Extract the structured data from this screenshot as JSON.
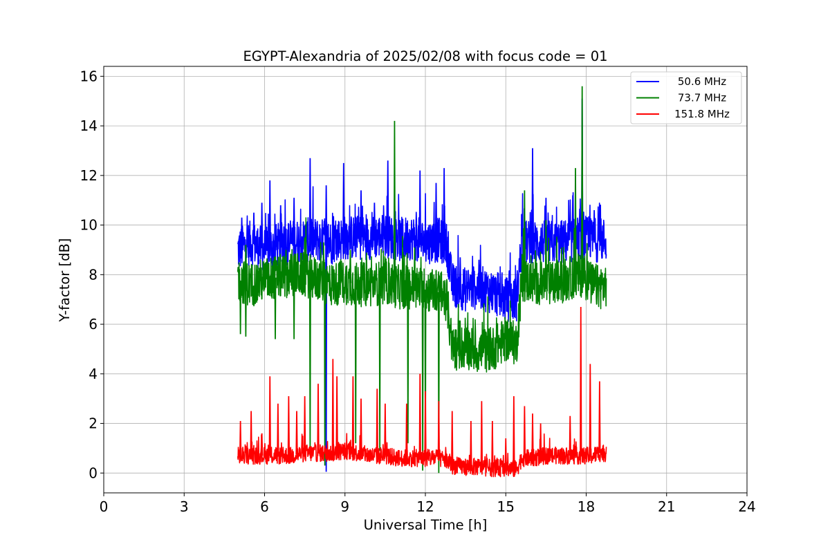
{
  "chart_data": {
    "type": "line",
    "title": "EGYPT-Alexandria of 2025/02/08 with focus code = 01",
    "xlabel": "Universal Time [h]",
    "ylabel": "Y-factor [dB]",
    "xlim": [
      0,
      24
    ],
    "ylim": [
      -0.8,
      16.4
    ],
    "xticks": [
      0,
      3,
      6,
      9,
      12,
      15,
      18,
      21,
      24
    ],
    "yticks": [
      0,
      2,
      4,
      6,
      8,
      10,
      12,
      14,
      16
    ],
    "grid": true,
    "legend_position": "top-right",
    "series": [
      {
        "name": " 50.6 MHz",
        "color": "#0000ff",
        "x": [
          5.0,
          5.5,
          6.0,
          6.5,
          7.0,
          7.5,
          8.0,
          8.5,
          9.0,
          9.5,
          10.0,
          10.5,
          11.0,
          11.5,
          12.0,
          12.5,
          12.8,
          13.0,
          13.5,
          14.0,
          14.5,
          15.0,
          15.4,
          15.6,
          16.0,
          16.5,
          17.0,
          17.5,
          17.9,
          18.2,
          18.5,
          18.75
        ],
        "y": [
          9.0,
          9.3,
          9.0,
          9.2,
          9.3,
          9.4,
          9.4,
          9.3,
          9.5,
          9.5,
          9.5,
          9.6,
          9.4,
          9.5,
          9.3,
          9.4,
          9.2,
          7.6,
          7.4,
          7.5,
          7.3,
          7.0,
          7.0,
          9.3,
          9.3,
          9.3,
          9.3,
          9.4,
          9.5,
          9.4,
          9.4,
          9.4
        ],
        "spikes": [
          {
            "x": 5.15,
            "y": 10.3
          },
          {
            "x": 5.6,
            "y": 10.5
          },
          {
            "x": 5.9,
            "y": 10.9
          },
          {
            "x": 6.2,
            "y": 11.8
          },
          {
            "x": 6.6,
            "y": 10.8
          },
          {
            "x": 7.1,
            "y": 11.1
          },
          {
            "x": 7.7,
            "y": 12.7
          },
          {
            "x": 8.3,
            "y": 11.6
          },
          {
            "x": 8.95,
            "y": 12.5
          },
          {
            "x": 9.6,
            "y": 11.4
          },
          {
            "x": 10.1,
            "y": 10.9
          },
          {
            "x": 10.6,
            "y": 12.6
          },
          {
            "x": 10.85,
            "y": 11.2
          },
          {
            "x": 11.8,
            "y": 12.2
          },
          {
            "x": 12.4,
            "y": 11.7
          },
          {
            "x": 12.7,
            "y": 12.3
          },
          {
            "x": 13.3,
            "y": 8.7
          },
          {
            "x": 14.0,
            "y": 8.6
          },
          {
            "x": 14.7,
            "y": 8.1
          },
          {
            "x": 16.0,
            "y": 13.1
          },
          {
            "x": 16.5,
            "y": 11.1
          },
          {
            "x": 17.5,
            "y": 11.2
          },
          {
            "x": 17.85,
            "y": 15.1
          },
          {
            "x": 18.3,
            "y": 10.6
          }
        ],
        "dips": [
          {
            "x": 8.3,
            "y": 0.05
          }
        ]
      },
      {
        "name": " 73.7 MHz",
        "color": "#008000",
        "x": [
          5.0,
          5.5,
          6.0,
          6.5,
          7.0,
          7.5,
          8.0,
          8.5,
          9.0,
          9.5,
          10.0,
          10.5,
          11.0,
          11.5,
          12.0,
          12.5,
          12.8,
          13.0,
          13.5,
          14.0,
          14.5,
          15.0,
          15.4,
          15.6,
          16.0,
          16.5,
          17.0,
          17.5,
          17.9,
          18.2,
          18.5,
          18.75
        ],
        "y": [
          7.8,
          7.6,
          7.8,
          7.9,
          8.0,
          8.0,
          7.8,
          7.6,
          7.7,
          7.6,
          7.6,
          7.7,
          7.5,
          7.5,
          7.4,
          7.3,
          7.0,
          5.0,
          5.1,
          4.9,
          5.0,
          5.4,
          5.2,
          7.8,
          7.7,
          7.6,
          7.7,
          7.9,
          8.0,
          7.6,
          7.5,
          7.6
        ],
        "spikes": [
          {
            "x": 5.3,
            "y": 9.2
          },
          {
            "x": 6.8,
            "y": 9.0
          },
          {
            "x": 7.5,
            "y": 9.5
          },
          {
            "x": 8.2,
            "y": 9.3
          },
          {
            "x": 9.2,
            "y": 9.0
          },
          {
            "x": 10.85,
            "y": 14.2
          },
          {
            "x": 11.6,
            "y": 9.1
          },
          {
            "x": 15.7,
            "y": 11.4
          },
          {
            "x": 16.5,
            "y": 10.2
          },
          {
            "x": 17.6,
            "y": 12.3
          },
          {
            "x": 17.85,
            "y": 15.6
          }
        ],
        "dips": [
          {
            "x": 5.1,
            "y": 5.6
          },
          {
            "x": 5.3,
            "y": 5.5
          },
          {
            "x": 6.4,
            "y": 5.4
          },
          {
            "x": 7.1,
            "y": 5.4
          },
          {
            "x": 7.7,
            "y": 0.7
          },
          {
            "x": 8.25,
            "y": 0.3
          },
          {
            "x": 9.4,
            "y": 1.2
          },
          {
            "x": 10.3,
            "y": 0.9
          },
          {
            "x": 11.35,
            "y": 1.2
          },
          {
            "x": 11.9,
            "y": 0.1
          },
          {
            "x": 12.0,
            "y": 0.5
          },
          {
            "x": 12.5,
            "y": 0.0
          }
        ]
      },
      {
        "name": "151.8 MHz",
        "color": "#ff0000",
        "x": [
          5.0,
          5.5,
          6.0,
          6.5,
          7.0,
          7.5,
          8.0,
          8.5,
          9.0,
          9.5,
          10.0,
          10.5,
          11.0,
          11.5,
          12.0,
          12.5,
          12.8,
          13.0,
          13.5,
          14.0,
          14.5,
          15.0,
          15.4,
          15.6,
          16.0,
          16.5,
          17.0,
          17.5,
          17.9,
          18.2,
          18.5,
          18.75
        ],
        "y": [
          0.7,
          0.7,
          0.7,
          0.7,
          0.7,
          0.8,
          0.8,
          0.8,
          0.9,
          0.8,
          0.7,
          0.7,
          0.6,
          0.6,
          0.6,
          0.6,
          0.5,
          0.3,
          0.25,
          0.25,
          0.2,
          0.2,
          0.15,
          0.6,
          0.6,
          0.7,
          0.7,
          0.7,
          0.7,
          0.7,
          0.8,
          0.8
        ],
        "spikes": [
          {
            "x": 5.1,
            "y": 2.1
          },
          {
            "x": 5.5,
            "y": 2.5
          },
          {
            "x": 5.9,
            "y": 1.6
          },
          {
            "x": 6.2,
            "y": 3.9
          },
          {
            "x": 6.5,
            "y": 2.8
          },
          {
            "x": 6.9,
            "y": 3.1
          },
          {
            "x": 7.2,
            "y": 2.5
          },
          {
            "x": 7.5,
            "y": 3.1
          },
          {
            "x": 8.0,
            "y": 3.6
          },
          {
            "x": 8.55,
            "y": 4.6
          },
          {
            "x": 8.7,
            "y": 3.9
          },
          {
            "x": 9.3,
            "y": 3.9
          },
          {
            "x": 9.6,
            "y": 3.0
          },
          {
            "x": 10.2,
            "y": 3.4
          },
          {
            "x": 10.5,
            "y": 2.8
          },
          {
            "x": 11.3,
            "y": 2.8
          },
          {
            "x": 11.8,
            "y": 4.0
          },
          {
            "x": 12.0,
            "y": 3.3
          },
          {
            "x": 12.5,
            "y": 2.9
          },
          {
            "x": 13.0,
            "y": 2.5
          },
          {
            "x": 13.7,
            "y": 2.1
          },
          {
            "x": 14.1,
            "y": 2.9
          },
          {
            "x": 14.5,
            "y": 2.1
          },
          {
            "x": 15.0,
            "y": 1.4
          },
          {
            "x": 15.3,
            "y": 3.1
          },
          {
            "x": 15.7,
            "y": 2.7
          },
          {
            "x": 16.0,
            "y": 2.4
          },
          {
            "x": 16.3,
            "y": 2.0
          },
          {
            "x": 17.4,
            "y": 2.3
          },
          {
            "x": 17.8,
            "y": 6.7
          },
          {
            "x": 18.15,
            "y": 4.4
          },
          {
            "x": 18.5,
            "y": 3.7
          }
        ],
        "dips": []
      }
    ]
  }
}
